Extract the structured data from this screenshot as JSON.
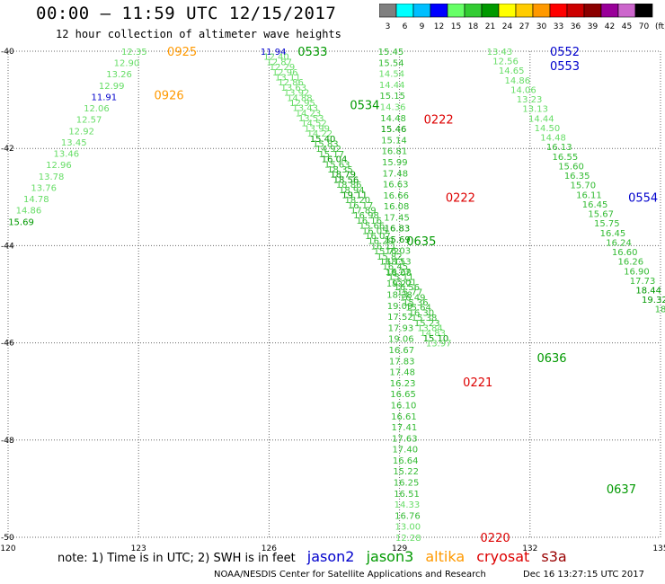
{
  "header": {
    "title": "00:00 – 11:59 UTC 12/15/2017",
    "subtitle": "12 hour collection of altimeter wave heights"
  },
  "colorbar": {
    "unit": "(ft)",
    "labels": [
      "3",
      "6",
      "9",
      "12",
      "15",
      "18",
      "21",
      "24",
      "27",
      "30",
      "33",
      "36",
      "39",
      "42",
      "45",
      "70"
    ],
    "colors": [
      "#808080",
      "#00ffff",
      "#00bfff",
      "#0000ff",
      "#66ff66",
      "#33cc33",
      "#009900",
      "#ffff00",
      "#ffcc00",
      "#ff9900",
      "#ff0000",
      "#cc0000",
      "#8b0000",
      "#990099",
      "#cc66cc",
      "#000000"
    ]
  },
  "note": {
    "text": "note: 1) Time is in UTC; 2) SWH is in feet",
    "satellites": [
      {
        "name": "jason2",
        "color": "#0000cc"
      },
      {
        "name": "jason3",
        "color": "#009900"
      },
      {
        "name": "altika",
        "color": "#ff9900"
      },
      {
        "name": "cryosat",
        "color": "#dd0000"
      },
      {
        "name": "s3a",
        "color": "#990000"
      }
    ]
  },
  "footer": {
    "credit": "NOAA/NESDIS Center for Satellite Applications and Research",
    "date": "Dec 16 13:27:15 UTC 2017"
  },
  "chart_data": {
    "type": "scatter",
    "xlim": [
      120,
      135
    ],
    "ylim": [
      -50,
      -40
    ],
    "x_ticks": [
      "120",
      "123",
      "126",
      "129",
      "132",
      "135"
    ],
    "y_ticks": [
      "-40",
      "-42",
      "-44",
      "-46",
      "-48",
      "-50"
    ],
    "grid": true,
    "colors": {
      "light": "#66dd66",
      "medium": "#33bb33",
      "dark": "#009900"
    },
    "tracks": [
      {
        "x0": 122.9,
        "y0": -40.0,
        "x1": 120.3,
        "y1": -43.5,
        "values": [
          "12.35",
          "12.90",
          "13.26",
          "12.99",
          "11.91",
          "12.06",
          "12.57",
          "12.92",
          "13.45",
          "13.46",
          "12.96",
          "13.78",
          "13.76",
          "14.78",
          "14.86",
          "15.69"
        ],
        "colors": [
          "L",
          "L",
          "L",
          "L",
          "B",
          "L",
          "L",
          "L",
          "L",
          "L",
          "L",
          "L",
          "L",
          "L",
          "L",
          "D"
        ]
      },
      {
        "x0": 126.1,
        "y0": -40.0,
        "x1": 129.9,
        "y1": -46.0,
        "values": [
          "11.94",
          "12.40",
          "12.87",
          "12.29",
          "12.96",
          "13.11",
          "12.86",
          "13.63",
          "13.92",
          "14.88",
          "12.95",
          "13.43",
          "14.23",
          "13.53",
          "14.52",
          "13.99",
          "14.22",
          "15.40",
          "15.83",
          "14.92",
          "15.17",
          "16.04",
          "15.63",
          "18.35",
          "18.79",
          "18.56",
          "18.86",
          "18.94",
          "19.11",
          "18.20",
          "16.17",
          "17.89",
          "16.98",
          "16.16",
          "15.66",
          "16.05",
          "16.07",
          "16.29",
          "16.11",
          "15.72",
          "15.82",
          "16.11",
          "16.45",
          "16.27",
          "15.11",
          "15.01",
          "16.56",
          "15.77",
          "16.49",
          "15.36",
          "15.64",
          "16.30",
          "15.38",
          "15.23",
          "13.84",
          "14.83",
          "15.10",
          "13.97"
        ],
        "colors": [
          "B",
          "L",
          "L",
          "L",
          "L",
          "L",
          "L",
          "L",
          "L",
          "L",
          "L",
          "L",
          "L",
          "L",
          "L",
          "L",
          "L",
          "D",
          "M",
          "M",
          "M",
          "D",
          "M",
          "M",
          "D",
          "D",
          "M",
          "M",
          "D",
          "M",
          "M",
          "M",
          "M",
          "M",
          "M",
          "M",
          "M",
          "M",
          "M",
          "M",
          "M",
          "M",
          "M",
          "M",
          "M",
          "M",
          "M",
          "M",
          "M",
          "M",
          "M",
          "M",
          "M",
          "M",
          "L",
          "L",
          "D",
          "L"
        ]
      },
      {
        "x0": 128.8,
        "y0": -40.0,
        "x1": 129.2,
        "y1": -50.0,
        "values": [
          "15.45",
          "15.54",
          "14.54",
          "14.44",
          "15.15",
          "14.36",
          "14.48",
          "15.46",
          "15.14",
          "16.81",
          "15.99",
          "17.48",
          "16.63",
          "16.66",
          "16.08",
          "17.45",
          "16.83",
          "15.69",
          "16.03",
          "18.53",
          "18.08",
          "19.22",
          "18.38",
          "19.09",
          "17.52",
          "17.93",
          "19.06",
          "16.67",
          "17.83",
          "17.48",
          "16.23",
          "16.65",
          "16.10",
          "16.61",
          "17.41",
          "17.63",
          "17.40",
          "16.64",
          "15.22",
          "16.25",
          "16.51",
          "14.33",
          "16.76",
          "13.00",
          "12.28"
        ],
        "colors": [
          "M",
          "M",
          "L",
          "L",
          "M",
          "L",
          "M",
          "D",
          "M",
          "M",
          "M",
          "M",
          "M",
          "M",
          "M",
          "M",
          "D",
          "D",
          "M",
          "M",
          "M",
          "M",
          "M",
          "M",
          "M",
          "M",
          "M",
          "M",
          "M",
          "M",
          "M",
          "M",
          "M",
          "M",
          "M",
          "M",
          "M",
          "M",
          "M",
          "M",
          "M",
          "L",
          "M",
          "L",
          "L"
        ]
      },
      {
        "x0": 131.3,
        "y0": -40.0,
        "x1": 135.0,
        "y1": -45.3,
        "values": [
          "13.43",
          "12.56",
          "14.65",
          "14.86",
          "14.06",
          "13.23",
          "13.13",
          "14.44",
          "14.50",
          "14.48",
          "16.13",
          "16.55",
          "15.60",
          "16.35",
          "15.70",
          "16.11",
          "16.45",
          "15.67",
          "15.75",
          "16.45",
          "16.24",
          "16.60",
          "16.26",
          "16.90",
          "17.73",
          "18.44",
          "19.32",
          "18"
        ],
        "colors": [
          "L",
          "L",
          "L",
          "L",
          "L",
          "L",
          "L",
          "L",
          "L",
          "L",
          "M",
          "M",
          "M",
          "M",
          "M",
          "M",
          "M",
          "M",
          "M",
          "M",
          "M",
          "M",
          "M",
          "M",
          "M",
          "D",
          "D",
          "M"
        ]
      }
    ],
    "time_labels": [
      {
        "text": "0925",
        "x": 124.0,
        "y": -40.0,
        "sat": "altika"
      },
      {
        "text": "0926",
        "x": 123.7,
        "y": -40.9,
        "sat": "altika"
      },
      {
        "text": "0533",
        "x": 127.0,
        "y": -40.0,
        "sat": "jason3"
      },
      {
        "text": "0534",
        "x": 128.2,
        "y": -41.1,
        "sat": "jason3"
      },
      {
        "text": "0635",
        "x": 129.5,
        "y": -43.9,
        "sat": "jason3"
      },
      {
        "text": "0636",
        "x": 132.5,
        "y": -46.3,
        "sat": "jason3"
      },
      {
        "text": "0637",
        "x": 134.1,
        "y": -49.0,
        "sat": "jason3"
      },
      {
        "text": "0552",
        "x": 132.8,
        "y": -40.0,
        "sat": "jason2"
      },
      {
        "text": "0553",
        "x": 132.8,
        "y": -40.3,
        "sat": "jason2"
      },
      {
        "text": "0554",
        "x": 134.6,
        "y": -43.0,
        "sat": "jason2"
      },
      {
        "text": "0222",
        "x": 129.9,
        "y": -41.4,
        "sat": "cryosat"
      },
      {
        "text": "0222",
        "x": 130.4,
        "y": -43.0,
        "sat": "cryosat"
      },
      {
        "text": "0221",
        "x": 130.8,
        "y": -46.8,
        "sat": "cryosat"
      },
      {
        "text": "0220",
        "x": 131.2,
        "y": -50.0,
        "sat": "cryosat"
      }
    ]
  }
}
